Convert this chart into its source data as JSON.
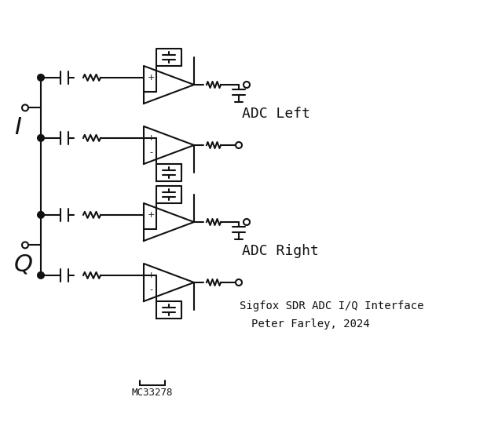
{
  "title": "Sigfox SDR ADC I/Q Interface",
  "author": "Peter Farley, 2024",
  "part": "MC33278",
  "label_I": "I",
  "label_Q": "Q",
  "label_adc_left": "ADC Left",
  "label_adc_right": "ADC Right",
  "bg_color": "#ffffff",
  "line_color": "#111111",
  "lw": 1.5,
  "figsize": [
    6.2,
    5.57
  ],
  "dpi": 100
}
